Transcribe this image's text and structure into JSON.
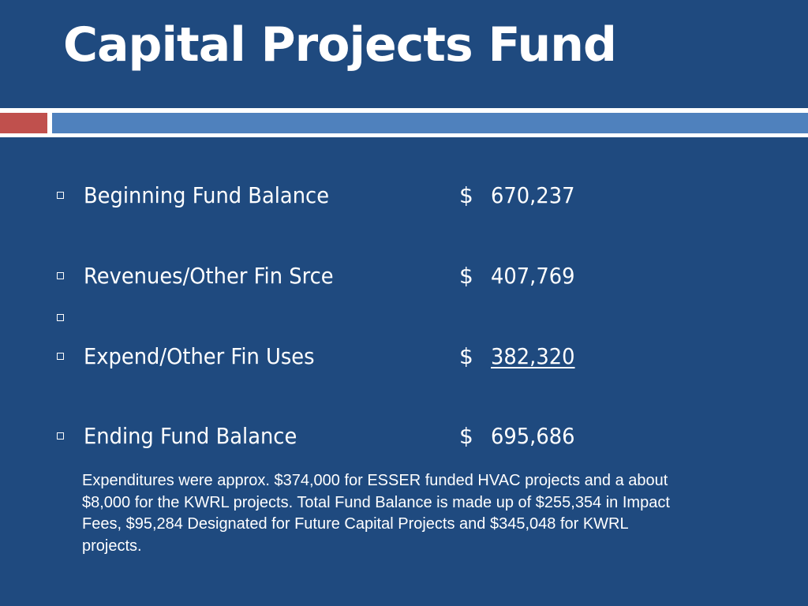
{
  "slide": {
    "title": "Capital Projects Fund"
  },
  "rows": [
    {
      "label": "Beginning Fund Balance",
      "currency": "$",
      "amount": "670,237",
      "underlined": false
    },
    {
      "label": "Revenues/Other Fin Srce",
      "currency": "$",
      "amount": "407,769",
      "underlined": false
    },
    {
      "label": "",
      "currency": "",
      "amount": "",
      "underlined": false
    },
    {
      "label": "Expend/Other Fin Uses",
      "currency": "$",
      "amount": "382,320",
      "underlined": true
    },
    {
      "label": "Ending Fund Balance",
      "currency": "$",
      "amount": "695,686",
      "underlined": false
    }
  ],
  "note": "Expenditures were approx. $374,000 for ESSER funded HVAC projects and a about $8,000 for the KWRL projects. Total Fund Balance is made up of $255,354 in Impact Fees, $95,284 Designated for Future Capital Projects and $345,048 for KWRL projects.",
  "colors": {
    "background": "#1f4a7f",
    "accent_red": "#c0504d",
    "accent_blue": "#4f81bd",
    "text": "#ffffff"
  }
}
